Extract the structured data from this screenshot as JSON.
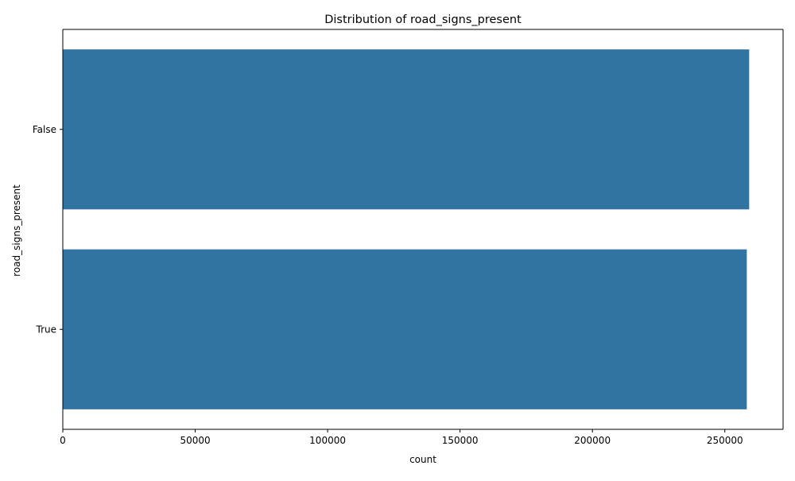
{
  "chart_data": {
    "type": "bar",
    "orientation": "horizontal",
    "title": "Distribution of road_signs_present",
    "xlabel": "count",
    "ylabel": "road_signs_present",
    "categories": [
      "False",
      "True"
    ],
    "values": [
      259200,
      258300
    ],
    "xlim": [
      0,
      272000
    ],
    "xticks": [
      0,
      50000,
      100000,
      150000,
      200000,
      250000
    ],
    "bar_color": "#3274a1",
    "grid": false,
    "legend": "none"
  }
}
